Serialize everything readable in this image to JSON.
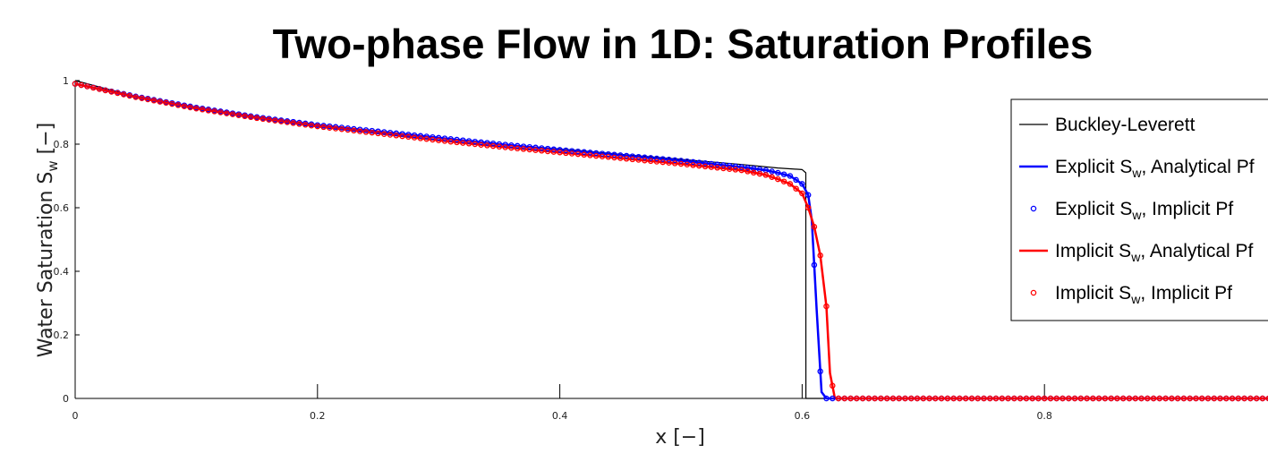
{
  "chart_data": {
    "type": "line",
    "title": "Two-phase Flow in 1D: Saturation Profiles",
    "xlabel": "x [−]",
    "ylabel_main": "Water Saturation S",
    "ylabel_sub": "w",
    "ylabel_unit": " [−]",
    "xlim": [
      0,
      1
    ],
    "ylim": [
      0,
      1
    ],
    "xticks": [
      0,
      0.2,
      0.4,
      0.6,
      0.8
    ],
    "xtick_labels": [
      "0",
      "0.2",
      "0.4",
      "0.6",
      "0.8"
    ],
    "yticks": [
      0,
      0.2,
      0.4,
      0.6,
      0.8,
      1
    ],
    "ytick_labels": [
      "0",
      "0.2",
      "0.4",
      "0.6",
      "0.8",
      "1"
    ],
    "grid": false,
    "legend_position": "top-right",
    "series": [
      {
        "label_main": "Buckley-Leverett",
        "label_sub": "",
        "label_rest": "",
        "color": "#000000",
        "style": "line",
        "x": [
          0,
          0.05,
          0.1,
          0.15,
          0.2,
          0.25,
          0.3,
          0.35,
          0.4,
          0.45,
          0.5,
          0.55,
          0.58,
          0.6,
          0.603,
          0.6031,
          1.0
        ],
        "y": [
          1.0,
          0.95,
          0.915,
          0.885,
          0.86,
          0.84,
          0.82,
          0.8,
          0.785,
          0.768,
          0.752,
          0.736,
          0.725,
          0.72,
          0.71,
          0.0,
          0.0
        ]
      },
      {
        "label_main": "Explicit S",
        "label_sub": "w",
        "label_rest": ", Analytical Pf",
        "color": "#0000ff",
        "style": "line",
        "x": [
          0,
          0.05,
          0.1,
          0.15,
          0.2,
          0.25,
          0.3,
          0.35,
          0.4,
          0.45,
          0.5,
          0.55,
          0.57,
          0.58,
          0.59,
          0.6,
          0.605,
          0.608,
          0.612,
          0.616,
          0.62,
          1.0
        ],
        "y": [
          0.99,
          0.95,
          0.915,
          0.885,
          0.86,
          0.84,
          0.82,
          0.8,
          0.782,
          0.765,
          0.748,
          0.728,
          0.718,
          0.71,
          0.7,
          0.675,
          0.64,
          0.56,
          0.28,
          0.02,
          0.0,
          0.0
        ]
      },
      {
        "label_main": "Explicit S",
        "label_sub": "w",
        "label_rest": ", Implicit Pf",
        "color": "#0000ff",
        "style": "markers",
        "x": [
          0,
          0.05,
          0.1,
          0.15,
          0.2,
          0.25,
          0.3,
          0.35,
          0.4,
          0.45,
          0.5,
          0.55,
          0.57,
          0.58,
          0.59,
          0.6,
          0.605,
          0.608,
          0.612,
          0.616,
          0.62,
          1.0
        ],
        "y": [
          0.99,
          0.95,
          0.915,
          0.885,
          0.86,
          0.84,
          0.82,
          0.8,
          0.782,
          0.765,
          0.748,
          0.728,
          0.718,
          0.71,
          0.7,
          0.675,
          0.64,
          0.56,
          0.28,
          0.02,
          0.0,
          0.0
        ]
      },
      {
        "label_main": "Implicit S",
        "label_sub": "w",
        "label_rest": ", Analytical Pf",
        "color": "#ff0000",
        "style": "line",
        "x": [
          0,
          0.05,
          0.1,
          0.15,
          0.2,
          0.25,
          0.3,
          0.35,
          0.4,
          0.45,
          0.5,
          0.55,
          0.57,
          0.58,
          0.59,
          0.6,
          0.605,
          0.61,
          0.615,
          0.62,
          0.623,
          0.627,
          0.63,
          1.0
        ],
        "y": [
          0.99,
          0.948,
          0.912,
          0.882,
          0.856,
          0.834,
          0.812,
          0.792,
          0.774,
          0.756,
          0.738,
          0.718,
          0.703,
          0.69,
          0.675,
          0.645,
          0.6,
          0.54,
          0.45,
          0.29,
          0.08,
          0.0,
          0.0,
          0.0
        ]
      },
      {
        "label_main": "Implicit S",
        "label_sub": "w",
        "label_rest": ", Implicit Pf",
        "color": "#ff0000",
        "style": "markers",
        "x": [
          0,
          0.05,
          0.1,
          0.15,
          0.2,
          0.25,
          0.3,
          0.35,
          0.4,
          0.45,
          0.5,
          0.55,
          0.57,
          0.58,
          0.59,
          0.6,
          0.605,
          0.61,
          0.615,
          0.62,
          0.623,
          0.627,
          0.63,
          1.0
        ],
        "y": [
          0.99,
          0.948,
          0.912,
          0.882,
          0.856,
          0.834,
          0.812,
          0.792,
          0.774,
          0.756,
          0.738,
          0.718,
          0.703,
          0.69,
          0.675,
          0.645,
          0.6,
          0.54,
          0.45,
          0.29,
          0.08,
          0.0,
          0.0,
          0.0
        ]
      }
    ]
  }
}
